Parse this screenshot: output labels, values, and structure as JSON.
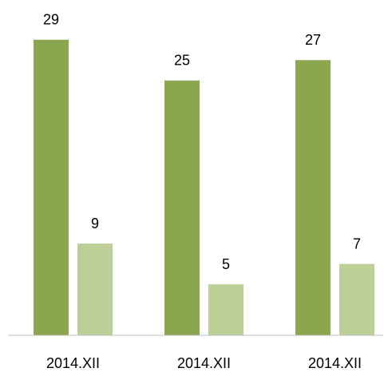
{
  "chart_data": {
    "type": "bar",
    "categories": [
      "2014.XII",
      "2014.XII",
      "2014.XII"
    ],
    "series": [
      {
        "color": "#8aa64e",
        "values": [
          29,
          25,
          27
        ]
      },
      {
        "color": "#bccf96",
        "values": [
          9,
          5,
          7
        ]
      }
    ],
    "ylim": [
      0,
      30
    ]
  }
}
